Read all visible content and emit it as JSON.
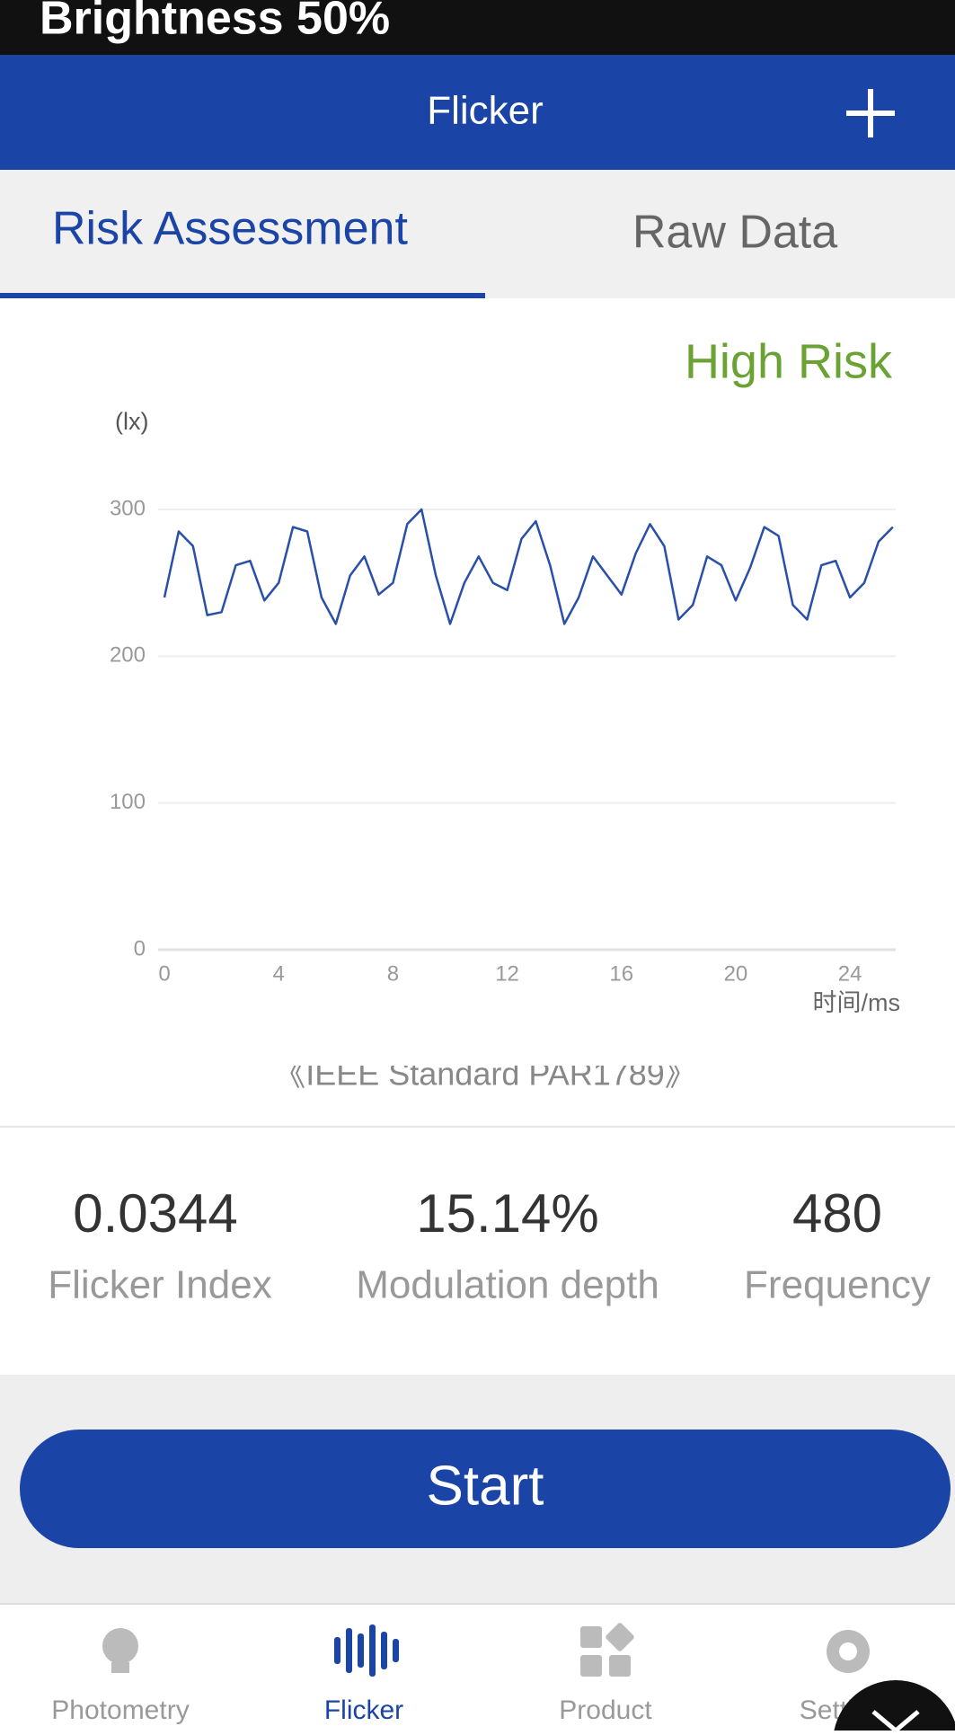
{
  "status_bar": {
    "text": "Brightness 50%"
  },
  "header": {
    "title": "Flicker"
  },
  "tabs": [
    "Risk Assessment",
    "Raw Data"
  ],
  "chart_data": {
    "type": "line",
    "annotation": "High Risk",
    "y_label": "(lx)",
    "x_label": "时间/ms",
    "x": [
      0,
      0.5,
      1,
      1.5,
      2,
      2.5,
      3,
      3.5,
      4,
      4.5,
      5,
      5.5,
      6,
      6.5,
      7,
      7.5,
      8,
      8.5,
      9,
      9.5,
      10,
      10.5,
      11,
      11.5,
      12,
      12.5,
      13,
      13.5,
      14,
      14.5,
      15,
      15.5,
      16,
      16.5,
      17,
      17.5,
      18,
      18.5,
      19,
      19.5,
      20,
      20.5,
      21,
      21.5,
      22,
      22.5,
      23,
      23.5,
      24,
      24.5,
      25,
      25.5
    ],
    "series": [
      {
        "color": "#2a4fa8",
        "values": [
          240,
          285,
          275,
          228,
          230,
          262,
          265,
          238,
          250,
          288,
          285,
          240,
          222,
          255,
          268,
          242,
          250,
          290,
          300,
          255,
          222,
          250,
          268,
          250,
          245,
          280,
          292,
          262,
          222,
          240,
          268,
          255,
          242,
          270,
          290,
          275,
          225,
          235,
          268,
          262,
          238,
          260,
          288,
          282,
          235,
          225,
          262,
          265,
          240,
          250,
          278,
          288
        ]
      }
    ],
    "xlim": [
      0,
      25.6
    ],
    "ylim": [
      0,
      300
    ],
    "xticks": [
      0,
      4,
      8,
      12,
      16,
      20,
      24
    ],
    "yticks": [
      0,
      100,
      200,
      300
    ],
    "grid": true
  },
  "standard_note": "《IEEE Standard PAR1789》",
  "metrics": [
    {
      "value": "0.0344",
      "label": "Flicker Index"
    },
    {
      "value": "15.14%",
      "label": "Modulation depth"
    },
    {
      "value": "480",
      "label": "Frequency"
    }
  ],
  "button": "Start",
  "nav": [
    "Photometry",
    "Flicker",
    "Product",
    "Settings"
  ]
}
